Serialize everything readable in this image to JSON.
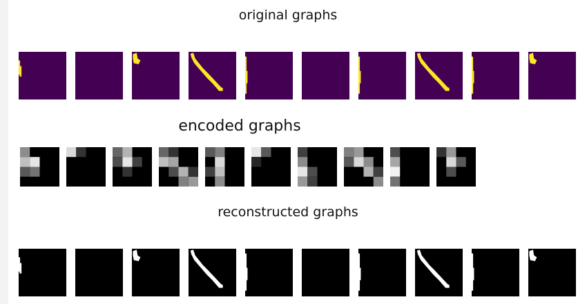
{
  "titles": {
    "original": "original graphs",
    "encoded": "encoded graphs",
    "reconstructed": "reconstructed graphs"
  },
  "colors": {
    "original_background": "#440154",
    "original_stroke": "#fde725",
    "reconstructed_background": "#000000",
    "reconstructed_stroke": "#ffffff",
    "encoded_background": "#000000"
  },
  "graphs": [
    {
      "shape": "left-blob",
      "encoded_cells": [
        [
          0,
          0,
          0.55
        ],
        [
          0,
          1,
          0.75
        ],
        [
          1,
          1,
          0.9
        ],
        [
          0,
          2,
          0.35
        ],
        [
          1,
          2,
          0.45
        ]
      ]
    },
    {
      "shape": "empty",
      "encoded_cells": [
        [
          0,
          0,
          0.85
        ],
        [
          1,
          0,
          0.2
        ]
      ]
    },
    {
      "shape": "top-left-blob",
      "encoded_cells": [
        [
          0,
          0,
          0.4
        ],
        [
          1,
          0,
          0.7
        ],
        [
          1,
          1,
          0.9
        ],
        [
          0,
          1,
          0.3
        ],
        [
          2,
          1,
          0.25
        ],
        [
          1,
          2,
          0.2
        ]
      ]
    },
    {
      "shape": "diagonal",
      "encoded_cells": [
        [
          0,
          0,
          0.4
        ],
        [
          1,
          0,
          0.2
        ],
        [
          0,
          1,
          0.75
        ],
        [
          1,
          1,
          0.65
        ],
        [
          2,
          2,
          0.7
        ],
        [
          3,
          3,
          0.6
        ],
        [
          1,
          2,
          0.3
        ],
        [
          2,
          3,
          0.5
        ],
        [
          3,
          2,
          0.2
        ]
      ]
    },
    {
      "shape": "left-line",
      "encoded_cells": [
        [
          0,
          0,
          0.35
        ],
        [
          1,
          0,
          0.5
        ],
        [
          1,
          1,
          0.85
        ],
        [
          1,
          2,
          0.75
        ],
        [
          1,
          3,
          0.55
        ],
        [
          0,
          2,
          0.25
        ]
      ]
    },
    {
      "shape": "empty",
      "encoded_cells": [
        [
          0,
          0,
          0.9
        ],
        [
          1,
          0,
          0.35
        ],
        [
          0,
          1,
          0.15
        ]
      ]
    },
    {
      "shape": "left-line",
      "encoded_cells": [
        [
          0,
          0,
          0.25
        ],
        [
          0,
          1,
          0.55
        ],
        [
          0,
          2,
          0.9
        ],
        [
          1,
          2,
          0.3
        ],
        [
          0,
          3,
          0.6
        ],
        [
          1,
          3,
          0.25
        ]
      ]
    },
    {
      "shape": "diagonal",
      "encoded_cells": [
        [
          0,
          0,
          0.5
        ],
        [
          1,
          0,
          0.6
        ],
        [
          1,
          1,
          0.85
        ],
        [
          2,
          1,
          0.55
        ],
        [
          2,
          2,
          0.7
        ],
        [
          3,
          3,
          0.55
        ],
        [
          0,
          1,
          0.35
        ],
        [
          3,
          2,
          0.25
        ]
      ]
    },
    {
      "shape": "left-line",
      "encoded_cells": [
        [
          0,
          0,
          0.3
        ],
        [
          0,
          1,
          0.65
        ],
        [
          0,
          2,
          0.95
        ],
        [
          0,
          3,
          0.45
        ]
      ]
    },
    {
      "shape": "top-left-blob",
      "encoded_cells": [
        [
          0,
          0,
          0.2
        ],
        [
          1,
          0,
          0.6
        ],
        [
          1,
          1,
          0.85
        ],
        [
          2,
          1,
          0.35
        ],
        [
          1,
          2,
          0.3
        ]
      ]
    }
  ]
}
